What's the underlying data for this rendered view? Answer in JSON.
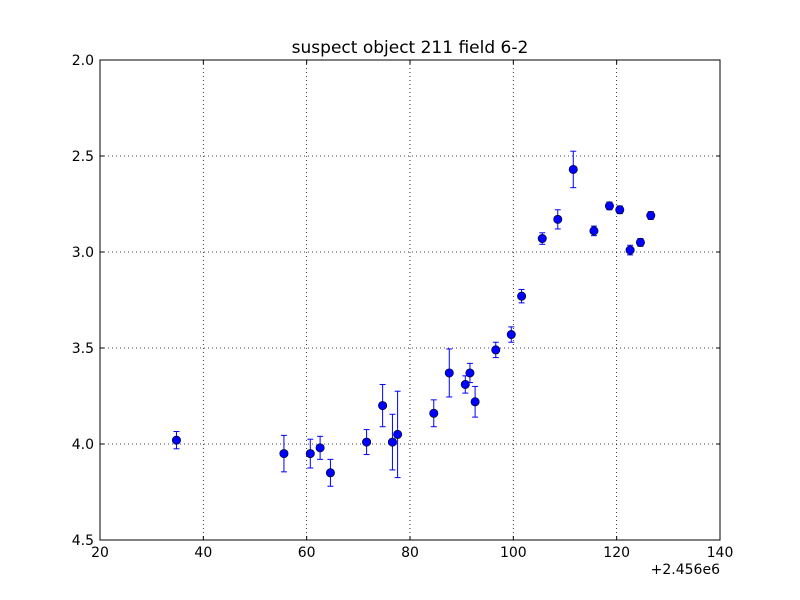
{
  "chart_data": {
    "type": "scatter",
    "title": "suspect object 211 field 6-2",
    "xlabel": "",
    "ylabel": "",
    "x_offset_label": "+2.456e6",
    "xlim": [
      20,
      140
    ],
    "ylim": [
      2.0,
      4.5
    ],
    "y_inverted": true,
    "grid": true,
    "x_ticks": [
      20,
      40,
      60,
      80,
      100,
      120,
      140
    ],
    "x_tick_labels": [
      "20",
      "40",
      "60",
      "80",
      "100",
      "120",
      "140"
    ],
    "y_ticks": [
      2.0,
      2.5,
      3.0,
      3.5,
      4.0,
      4.5
    ],
    "y_tick_labels": [
      "2.0",
      "2.5",
      "3.0",
      "3.5",
      "4.0",
      "4.5"
    ],
    "marker_color": "#0000ff",
    "error_bar_color": "#0000ff",
    "points": [
      {
        "x": 34.8,
        "y": 3.98,
        "err": 0.045
      },
      {
        "x": 55.6,
        "y": 4.05,
        "err": 0.095
      },
      {
        "x": 60.7,
        "y": 4.05,
        "err": 0.075
      },
      {
        "x": 62.6,
        "y": 4.02,
        "err": 0.06
      },
      {
        "x": 64.6,
        "y": 4.15,
        "err": 0.07
      },
      {
        "x": 71.6,
        "y": 3.99,
        "err": 0.065
      },
      {
        "x": 74.7,
        "y": 3.8,
        "err": 0.11
      },
      {
        "x": 76.6,
        "y": 3.99,
        "err": 0.145
      },
      {
        "x": 77.6,
        "y": 3.95,
        "err": 0.225
      },
      {
        "x": 84.6,
        "y": 3.84,
        "err": 0.07
      },
      {
        "x": 87.6,
        "y": 3.63,
        "err": 0.125
      },
      {
        "x": 90.7,
        "y": 3.69,
        "err": 0.045
      },
      {
        "x": 91.6,
        "y": 3.63,
        "err": 0.05
      },
      {
        "x": 92.6,
        "y": 3.78,
        "err": 0.08
      },
      {
        "x": 96.6,
        "y": 3.51,
        "err": 0.04
      },
      {
        "x": 99.6,
        "y": 3.43,
        "err": 0.04
      },
      {
        "x": 101.6,
        "y": 3.23,
        "err": 0.035
      },
      {
        "x": 105.6,
        "y": 2.93,
        "err": 0.03
      },
      {
        "x": 108.6,
        "y": 2.83,
        "err": 0.05
      },
      {
        "x": 111.6,
        "y": 2.57,
        "err": 0.095
      },
      {
        "x": 115.6,
        "y": 2.89,
        "err": 0.025
      },
      {
        "x": 118.6,
        "y": 2.76,
        "err": 0.02
      },
      {
        "x": 120.6,
        "y": 2.78,
        "err": 0.02
      },
      {
        "x": 122.6,
        "y": 2.99,
        "err": 0.025
      },
      {
        "x": 124.6,
        "y": 2.95,
        "err": 0.02
      },
      {
        "x": 126.6,
        "y": 2.81,
        "err": 0.02
      }
    ]
  }
}
